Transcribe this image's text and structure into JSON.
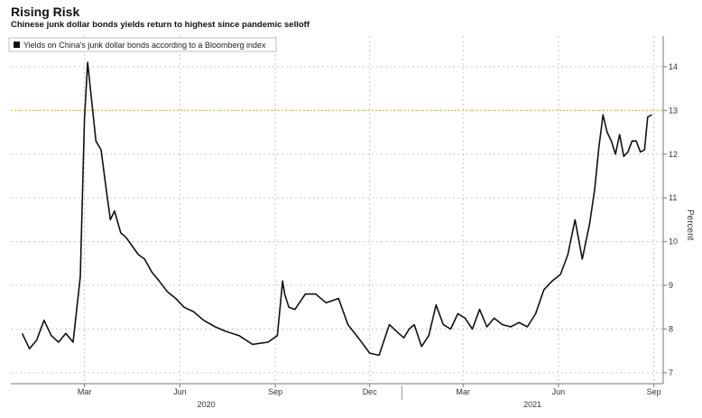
{
  "header": {
    "title": "Rising Risk",
    "subtitle": "Chinese junk dollar bonds yields return to highest since pandemic selloff"
  },
  "chart_data": {
    "type": "line",
    "title": "Rising Risk",
    "subtitle": "Chinese junk dollar bonds yields return to highest since pandemic selloff",
    "ylabel": "Percent",
    "ylim": [
      6.75,
      14.7
    ],
    "yticks": [
      7,
      8,
      9,
      10,
      11,
      12,
      13,
      14
    ],
    "reference_line": {
      "y": 13,
      "color": "#e0d24a",
      "style": "dotted"
    },
    "grid": true,
    "legend_position": "top-left",
    "x_month_ticks": [
      "Mar",
      "Jun",
      "Sep",
      "Dec",
      "Mar",
      "Jun",
      "Sep"
    ],
    "x_year_labels": [
      "2020",
      "2021"
    ],
    "series": [
      {
        "name": "Yields on China's junk dollar bonds according to a Bloomberg index",
        "color": "#111111",
        "x": [
          "2020-01-01",
          "2020-01-08",
          "2020-01-15",
          "2020-01-22",
          "2020-01-29",
          "2020-02-05",
          "2020-02-12",
          "2020-02-19",
          "2020-02-26",
          "2020-03-01",
          "2020-03-04",
          "2020-03-08",
          "2020-03-12",
          "2020-03-17",
          "2020-03-22",
          "2020-03-26",
          "2020-03-30",
          "2020-04-05",
          "2020-04-10",
          "2020-04-16",
          "2020-04-22",
          "2020-04-28",
          "2020-05-05",
          "2020-05-12",
          "2020-05-20",
          "2020-05-28",
          "2020-06-05",
          "2020-06-14",
          "2020-06-24",
          "2020-07-05",
          "2020-07-15",
          "2020-07-28",
          "2020-08-10",
          "2020-08-25",
          "2020-09-03",
          "2020-09-08",
          "2020-09-10",
          "2020-09-14",
          "2020-09-20",
          "2020-09-30",
          "2020-10-10",
          "2020-10-20",
          "2020-11-01",
          "2020-11-10",
          "2020-11-20",
          "2020-12-01",
          "2020-12-10",
          "2020-12-20",
          "2020-12-29",
          "2021-01-03",
          "2021-01-08",
          "2021-01-13",
          "2021-01-20",
          "2021-01-27",
          "2021-02-03",
          "2021-02-10",
          "2021-02-17",
          "2021-02-24",
          "2021-03-03",
          "2021-03-10",
          "2021-03-17",
          "2021-03-24",
          "2021-03-31",
          "2021-04-08",
          "2021-04-16",
          "2021-04-24",
          "2021-05-02",
          "2021-05-10",
          "2021-05-18",
          "2021-05-26",
          "2021-06-03",
          "2021-06-10",
          "2021-06-17",
          "2021-06-24",
          "2021-07-01",
          "2021-07-06",
          "2021-07-10",
          "2021-07-14",
          "2021-07-18",
          "2021-07-22",
          "2021-07-26",
          "2021-07-30",
          "2021-08-03",
          "2021-08-07",
          "2021-08-11",
          "2021-08-15",
          "2021-08-19",
          "2021-08-23",
          "2021-08-26",
          "2021-08-30"
        ],
        "y": [
          7.9,
          7.55,
          7.75,
          8.2,
          7.85,
          7.7,
          7.9,
          7.7,
          9.2,
          12.8,
          14.1,
          13.2,
          12.3,
          12.1,
          11.2,
          10.5,
          10.7,
          10.2,
          10.1,
          9.9,
          9.7,
          9.6,
          9.3,
          9.1,
          8.85,
          8.7,
          8.5,
          8.4,
          8.2,
          8.05,
          7.95,
          7.85,
          7.65,
          7.7,
          7.85,
          9.1,
          8.8,
          8.5,
          8.45,
          8.8,
          8.8,
          8.6,
          8.7,
          8.1,
          7.8,
          7.45,
          7.4,
          8.1,
          7.9,
          7.8,
          8.0,
          8.1,
          7.6,
          7.85,
          8.55,
          8.1,
          8.0,
          8.35,
          8.25,
          8.0,
          8.45,
          8.05,
          8.25,
          8.1,
          8.05,
          8.15,
          8.05,
          8.35,
          8.9,
          9.1,
          9.25,
          9.7,
          10.5,
          9.6,
          10.4,
          11.2,
          12.15,
          12.9,
          12.5,
          12.3,
          12.0,
          12.45,
          11.95,
          12.05,
          12.3,
          12.3,
          12.05,
          12.1,
          12.85,
          12.9
        ]
      }
    ]
  }
}
